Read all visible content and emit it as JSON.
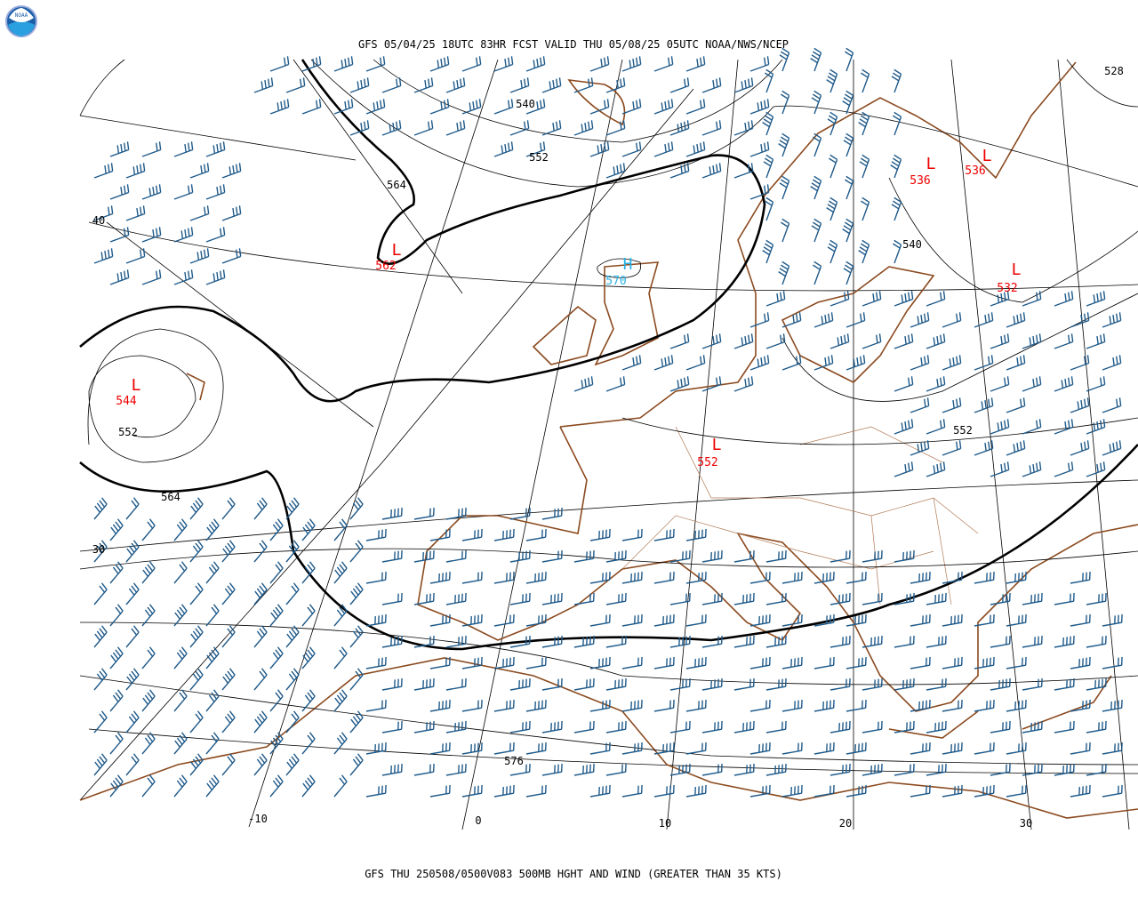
{
  "header": {
    "title": "GFS 05/04/25 18UTC 83HR FCST VALID THU 05/08/25 05UTC NOAA/NWS/NCEP"
  },
  "footer": {
    "caption": "GFS THU 250508/0500V083 500MB HGHT AND WIND (GREATER THAN 35 KTS)"
  },
  "logo": {
    "text": "NOAA"
  },
  "contour_labels": [
    "540",
    "552",
    "564",
    "540",
    "552",
    "552",
    "564",
    "576",
    "528"
  ],
  "centers": [
    {
      "symbol": "L",
      "value": "562"
    },
    {
      "symbol": "H",
      "value": "570"
    },
    {
      "symbol": "L",
      "value": "544"
    },
    {
      "symbol": "L",
      "value": "552"
    },
    {
      "symbol": "L",
      "value": "536"
    },
    {
      "symbol": "L",
      "value": "536"
    },
    {
      "symbol": "L",
      "value": "532"
    }
  ],
  "grid_labels": [
    "40",
    "30",
    "-10",
    "0",
    "10",
    "20",
    "30"
  ]
}
